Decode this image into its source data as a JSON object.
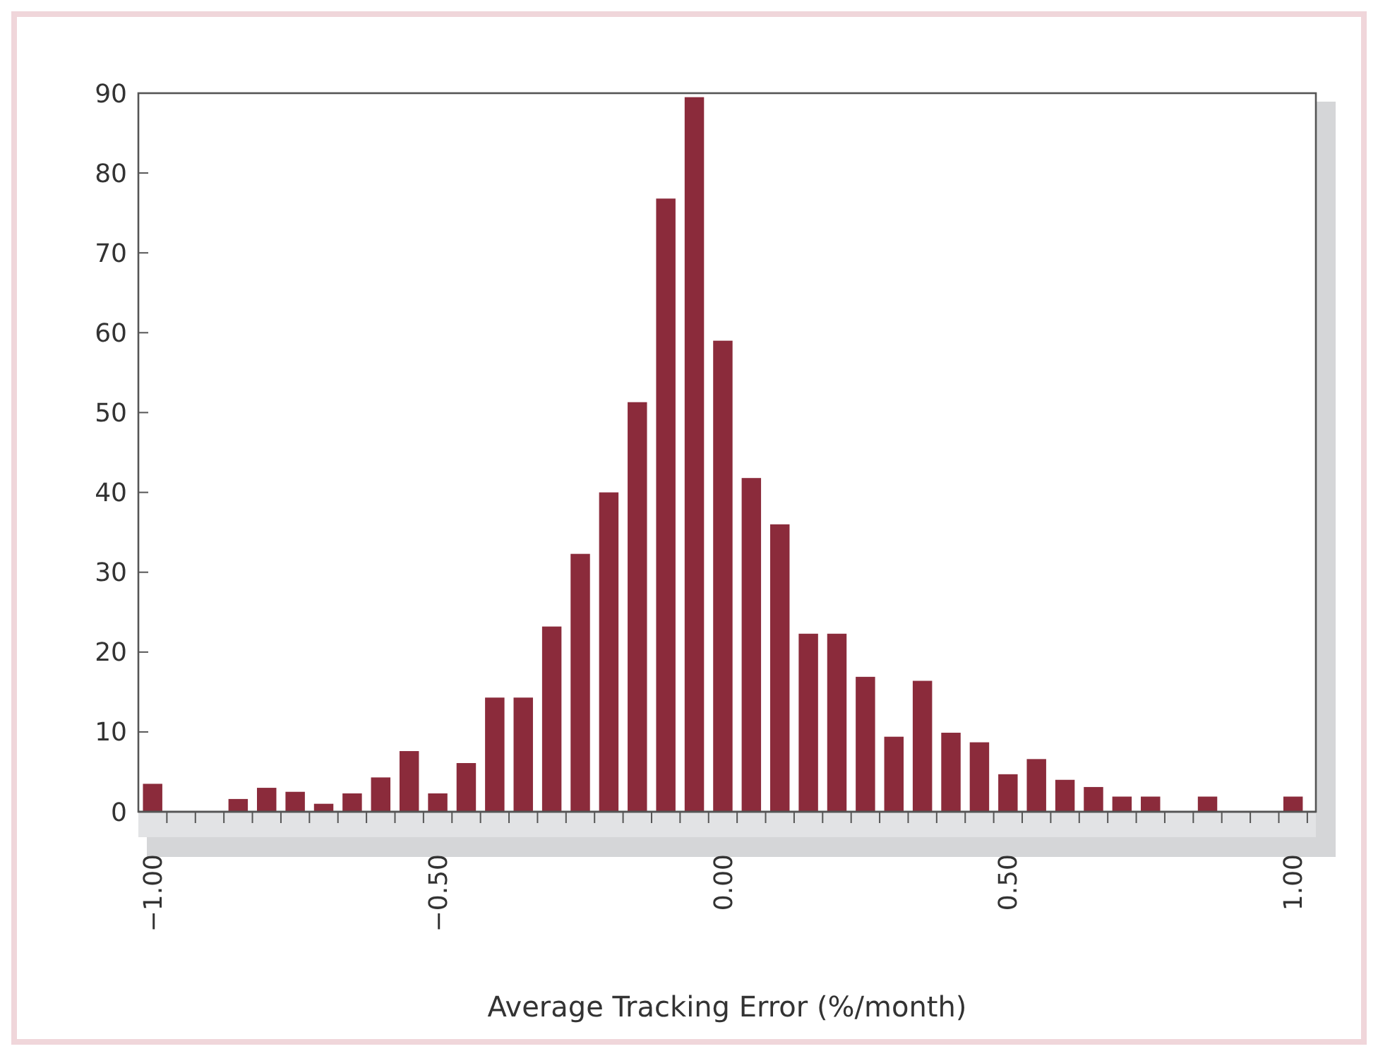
{
  "chart_data": {
    "type": "bar",
    "xlabel": "Average Tracking Error (%/month)",
    "x": [
      -1,
      -0.95,
      -0.9,
      -0.85,
      -0.8,
      -0.75,
      -0.7,
      -0.65,
      -0.6,
      -0.55,
      -0.5,
      -0.45,
      -0.4,
      -0.35,
      -0.3,
      -0.25,
      -0.2,
      -0.15,
      -0.1,
      -0.05,
      0,
      0.05,
      0.1,
      0.15,
      0.2,
      0.25,
      0.3,
      0.35,
      0.4,
      0.45,
      0.5,
      0.55,
      0.6,
      0.65,
      0.7,
      0.75,
      0.8,
      0.85,
      0.9,
      0.95,
      1
    ],
    "values": [
      3.5,
      0,
      0,
      1.6,
      3,
      2.5,
      1,
      2.3,
      4.3,
      7.6,
      2.3,
      6.1,
      14.3,
      14.3,
      23.2,
      32.3,
      40,
      51.3,
      76.8,
      89.5,
      59,
      41.8,
      36,
      22.3,
      22.3,
      16.9,
      9.4,
      16.4,
      9.9,
      8.7,
      4.7,
      6.6,
      4,
      3.1,
      1.9,
      1.9,
      0,
      1.9,
      0,
      0,
      1.9
    ],
    "color": "#8b2b3b",
    "xlim": [
      -1.025,
      1.04
    ],
    "xticks": [
      {
        "value": -1,
        "label": "−1.00"
      },
      {
        "value": -0.5,
        "label": "−0.50"
      },
      {
        "value": 0,
        "label": "0.00"
      },
      {
        "value": 0.5,
        "label": "0.50"
      },
      {
        "value": 1,
        "label": "1.00"
      },
      {
        "value": -0.975,
        "label": null
      },
      {
        "value": -0.925,
        "label": null
      },
      {
        "value": -0.875,
        "label": null
      },
      {
        "value": -0.825,
        "label": null
      },
      {
        "value": -0.775,
        "label": null
      },
      {
        "value": -0.725,
        "label": null
      },
      {
        "value": -0.675,
        "label": null
      },
      {
        "value": -0.625,
        "label": null
      },
      {
        "value": -0.575,
        "label": null
      },
      {
        "value": -0.525,
        "label": null
      },
      {
        "value": -0.475,
        "label": null
      },
      {
        "value": -0.425,
        "label": null
      },
      {
        "value": -0.375,
        "label": null
      },
      {
        "value": -0.325,
        "label": null
      },
      {
        "value": -0.275,
        "label": null
      },
      {
        "value": -0.225,
        "label": null
      },
      {
        "value": -0.175,
        "label": null
      },
      {
        "value": -0.125,
        "label": null
      },
      {
        "value": -0.075,
        "label": null
      },
      {
        "value": -0.025,
        "label": null
      },
      {
        "value": 0.025,
        "label": null
      },
      {
        "value": 0.075,
        "label": null
      },
      {
        "value": 0.125,
        "label": null
      },
      {
        "value": 0.175,
        "label": null
      },
      {
        "value": 0.225,
        "label": null
      },
      {
        "value": 0.275,
        "label": null
      },
      {
        "value": 0.325,
        "label": null
      },
      {
        "value": 0.375,
        "label": null
      },
      {
        "value": 0.425,
        "label": null
      },
      {
        "value": 0.475,
        "label": null
      },
      {
        "value": 0.525,
        "label": null
      },
      {
        "value": 0.575,
        "label": null
      },
      {
        "value": 0.625,
        "label": null
      },
      {
        "value": 0.675,
        "label": null
      },
      {
        "value": 0.725,
        "label": null
      },
      {
        "value": 0.775,
        "label": null
      },
      {
        "value": 0.825,
        "label": null
      },
      {
        "value": 0.875,
        "label": null
      },
      {
        "value": 0.925,
        "label": null
      },
      {
        "value": 0.975,
        "label": null
      },
      {
        "value": 1.025,
        "label": null
      }
    ],
    "ylim": [
      0,
      90
    ],
    "yticks": [
      0,
      10,
      20,
      30,
      40,
      50,
      60,
      70,
      80,
      90
    ],
    "grid": false
  }
}
